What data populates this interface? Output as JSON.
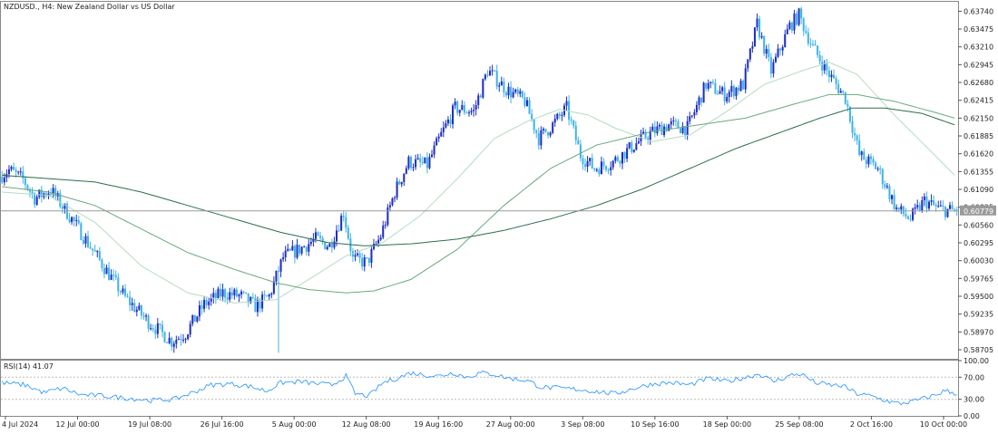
{
  "chart_data": [
    {
      "type": "candlestick",
      "title": "NZDUSD., H4:  New Zealand Dollar vs US Dollar",
      "current_price": 0.6077,
      "current_price_label": "0.60779",
      "ylim": [
        0.5857,
        0.6388
      ],
      "y_ticks": [
        "0.63740",
        "0.63475",
        "0.63210",
        "0.62945",
        "0.62680",
        "0.62415",
        "0.62150",
        "0.61885",
        "0.61620",
        "0.61355",
        "0.61090",
        "0.60825",
        "0.60560",
        "0.60295",
        "0.60030",
        "0.59765",
        "0.59500",
        "0.59235",
        "0.58970",
        "0.58705"
      ],
      "x_ticks": [
        "4 Jul 2024",
        "12 Jul 00:00",
        "19 Jul 08:00",
        "26 Jul 16:00",
        "5 Aug 00:00",
        "12 Aug 08:00",
        "19 Aug 16:00",
        "27 Aug 00:00",
        "3 Sep 08:00",
        "10 Sep 16:00",
        "18 Sep 00:00",
        "25 Sep 08:00",
        "2 Oct 16:00",
        "10 Oct 00:00"
      ],
      "price_path": [
        [
          0,
          0.6128
        ],
        [
          4,
          0.6138
        ],
        [
          10,
          0.6124
        ],
        [
          15,
          0.6096
        ],
        [
          22,
          0.6108
        ],
        [
          32,
          0.606
        ],
        [
          44,
          0.5998
        ],
        [
          54,
          0.5948
        ],
        [
          64,
          0.5912
        ],
        [
          74,
          0.5883
        ],
        [
          80,
          0.5895
        ],
        [
          88,
          0.5938
        ],
        [
          96,
          0.5955
        ],
        [
          104,
          0.595
        ],
        [
          110,
          0.5935
        ],
        [
          116,
          0.595
        ],
        [
          122,
          0.6008
        ],
        [
          130,
          0.6022
        ],
        [
          136,
          0.6035
        ],
        [
          142,
          0.6025
        ],
        [
          148,
          0.6075
        ],
        [
          152,
          0.6005
        ],
        [
          158,
          0.6
        ],
        [
          164,
          0.604
        ],
        [
          170,
          0.6105
        ],
        [
          176,
          0.615
        ],
        [
          184,
          0.6145
        ],
        [
          190,
          0.619
        ],
        [
          196,
          0.623
        ],
        [
          204,
          0.6225
        ],
        [
          210,
          0.6286
        ],
        [
          218,
          0.6258
        ],
        [
          226,
          0.624
        ],
        [
          232,
          0.6185
        ],
        [
          238,
          0.6205
        ],
        [
          244,
          0.623
        ],
        [
          250,
          0.616
        ],
        [
          256,
          0.614
        ],
        [
          264,
          0.615
        ],
        [
          272,
          0.6172
        ],
        [
          280,
          0.6193
        ],
        [
          288,
          0.6205
        ],
        [
          296,
          0.62
        ],
        [
          304,
          0.6265
        ],
        [
          312,
          0.625
        ],
        [
          320,
          0.6265
        ],
        [
          326,
          0.6355
        ],
        [
          332,
          0.6285
        ],
        [
          340,
          0.6352
        ],
        [
          344,
          0.6368
        ],
        [
          350,
          0.632
        ],
        [
          356,
          0.6285
        ],
        [
          364,
          0.6245
        ],
        [
          370,
          0.616
        ],
        [
          378,
          0.614
        ],
        [
          386,
          0.608
        ],
        [
          392,
          0.6065
        ],
        [
          398,
          0.6092
        ],
        [
          404,
          0.608
        ],
        [
          410,
          0.6077
        ]
      ],
      "special_wicks": [
        {
          "bar": 119,
          "high": 0.5985,
          "low": 0.5866
        }
      ],
      "ma_series": [
        {
          "color": "#b5dcc0",
          "path": [
            [
              0,
              0.6105
            ],
            [
              20,
              0.61
            ],
            [
              40,
              0.606
            ],
            [
              60,
              0.5995
            ],
            [
              80,
              0.5955
            ],
            [
              100,
              0.594
            ],
            [
              118,
              0.5945
            ],
            [
              132,
              0.5975
            ],
            [
              148,
              0.601
            ],
            [
              164,
              0.603
            ],
            [
              180,
              0.607
            ],
            [
              196,
              0.6125
            ],
            [
              212,
              0.6185
            ],
            [
              226,
              0.621
            ],
            [
              240,
              0.6228
            ],
            [
              252,
              0.622
            ],
            [
              264,
              0.62
            ],
            [
              280,
              0.618
            ],
            [
              296,
              0.619
            ],
            [
              312,
              0.6225
            ],
            [
              328,
              0.6265
            ],
            [
              344,
              0.6285
            ],
            [
              356,
              0.6298
            ],
            [
              368,
              0.628
            ],
            [
              384,
              0.622
            ],
            [
              400,
              0.6165
            ],
            [
              410,
              0.613
            ]
          ]
        },
        {
          "color": "#6aaa7e",
          "path": [
            [
              0,
              0.6113
            ],
            [
              20,
              0.6105
            ],
            [
              40,
              0.6085
            ],
            [
              60,
              0.605
            ],
            [
              80,
              0.6015
            ],
            [
              100,
              0.599
            ],
            [
              118,
              0.597
            ],
            [
              132,
              0.596
            ],
            [
              148,
              0.5955
            ],
            [
              160,
              0.5958
            ],
            [
              176,
              0.5975
            ],
            [
              196,
              0.602
            ],
            [
              216,
              0.6085
            ],
            [
              236,
              0.614
            ],
            [
              256,
              0.6175
            ],
            [
              280,
              0.6195
            ],
            [
              300,
              0.6205
            ],
            [
              320,
              0.6215
            ],
            [
              340,
              0.6235
            ],
            [
              356,
              0.625
            ],
            [
              368,
              0.625
            ],
            [
              384,
              0.624
            ],
            [
              400,
              0.6225
            ],
            [
              410,
              0.6215
            ]
          ]
        },
        {
          "color": "#2c6e49",
          "path": [
            [
              0,
              0.613
            ],
            [
              20,
              0.6125
            ],
            [
              40,
              0.612
            ],
            [
              60,
              0.6105
            ],
            [
              80,
              0.6085
            ],
            [
              100,
              0.6065
            ],
            [
              120,
              0.6045
            ],
            [
              140,
              0.603
            ],
            [
              156,
              0.6025
            ],
            [
              176,
              0.6028
            ],
            [
              196,
              0.6035
            ],
            [
              216,
              0.6048
            ],
            [
              236,
              0.6065
            ],
            [
              256,
              0.6085
            ],
            [
              276,
              0.611
            ],
            [
              296,
              0.614
            ],
            [
              316,
              0.617
            ],
            [
              336,
              0.6195
            ],
            [
              352,
              0.6215
            ],
            [
              366,
              0.623
            ],
            [
              380,
              0.623
            ],
            [
              396,
              0.6222
            ],
            [
              410,
              0.6205
            ]
          ]
        }
      ]
    },
    {
      "type": "line",
      "title": "RSI(14) 41.07",
      "ylim": [
        0,
        100
      ],
      "y_ticks": [
        "100.00",
        "70.00",
        "30.00",
        "0.00"
      ],
      "levels": [
        70,
        30
      ],
      "path": [
        [
          0,
          60
        ],
        [
          10,
          56
        ],
        [
          18,
          42
        ],
        [
          26,
          50
        ],
        [
          34,
          38
        ],
        [
          44,
          36
        ],
        [
          54,
          32
        ],
        [
          64,
          28
        ],
        [
          74,
          30
        ],
        [
          82,
          42
        ],
        [
          90,
          56
        ],
        [
          98,
          58
        ],
        [
          106,
          54
        ],
        [
          114,
          45
        ],
        [
          120,
          60
        ],
        [
          128,
          62
        ],
        [
          136,
          58
        ],
        [
          142,
          56
        ],
        [
          148,
          72
        ],
        [
          152,
          40
        ],
        [
          158,
          36
        ],
        [
          164,
          60
        ],
        [
          170,
          68
        ],
        [
          176,
          78
        ],
        [
          182,
          74
        ],
        [
          188,
          72
        ],
        [
          194,
          78
        ],
        [
          200,
          70
        ],
        [
          206,
          78
        ],
        [
          212,
          75
        ],
        [
          218,
          68
        ],
        [
          226,
          64
        ],
        [
          232,
          52
        ],
        [
          240,
          50
        ],
        [
          248,
          48
        ],
        [
          256,
          44
        ],
        [
          264,
          40
        ],
        [
          272,
          50
        ],
        [
          280,
          58
        ],
        [
          288,
          60
        ],
        [
          296,
          56
        ],
        [
          304,
          68
        ],
        [
          312,
          62
        ],
        [
          320,
          70
        ],
        [
          326,
          76
        ],
        [
          332,
          62
        ],
        [
          340,
          74
        ],
        [
          344,
          76
        ],
        [
          350,
          60
        ],
        [
          356,
          56
        ],
        [
          362,
          54
        ],
        [
          368,
          40
        ],
        [
          374,
          36
        ],
        [
          380,
          28
        ],
        [
          386,
          22
        ],
        [
          392,
          26
        ],
        [
          398,
          33
        ],
        [
          402,
          38
        ],
        [
          406,
          46
        ],
        [
          410,
          41
        ]
      ]
    }
  ]
}
